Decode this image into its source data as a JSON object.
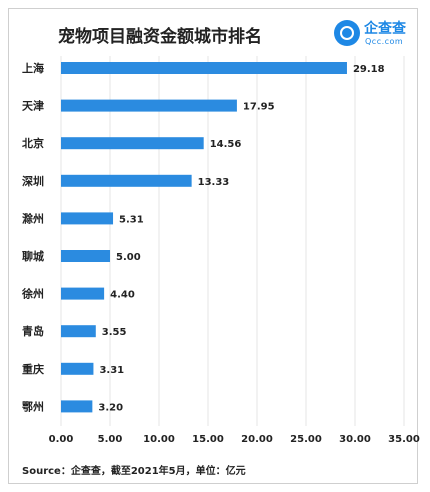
{
  "brand": {
    "name": "企查查",
    "sub": "Qcc.com"
  },
  "source": "Source：企查查，截至2021年5月，单位：亿元",
  "chart_data": {
    "type": "bar",
    "orientation": "horizontal",
    "title": "宠物项目融资金额城市排名",
    "categories": [
      "上海",
      "天津",
      "北京",
      "深圳",
      "滁州",
      "聊城",
      "徐州",
      "青岛",
      "重庆",
      "鄂州"
    ],
    "values": [
      29.18,
      17.95,
      14.56,
      13.33,
      5.31,
      5.0,
      4.4,
      3.55,
      3.31,
      3.2
    ],
    "value_labels": [
      "29.18",
      "17.95",
      "14.56",
      "13.33",
      "5.31",
      "5.00",
      "4.40",
      "3.55",
      "3.31",
      "3.20"
    ],
    "xlim": [
      0,
      35
    ],
    "xticks": [
      "0.00",
      "5.00",
      "10.00",
      "15.00",
      "20.00",
      "25.00",
      "30.00",
      "35.00"
    ],
    "xlabel": "",
    "ylabel": "",
    "grid": true,
    "bar_color": "#2b8be0",
    "grid_color": "#e4e4e4"
  }
}
